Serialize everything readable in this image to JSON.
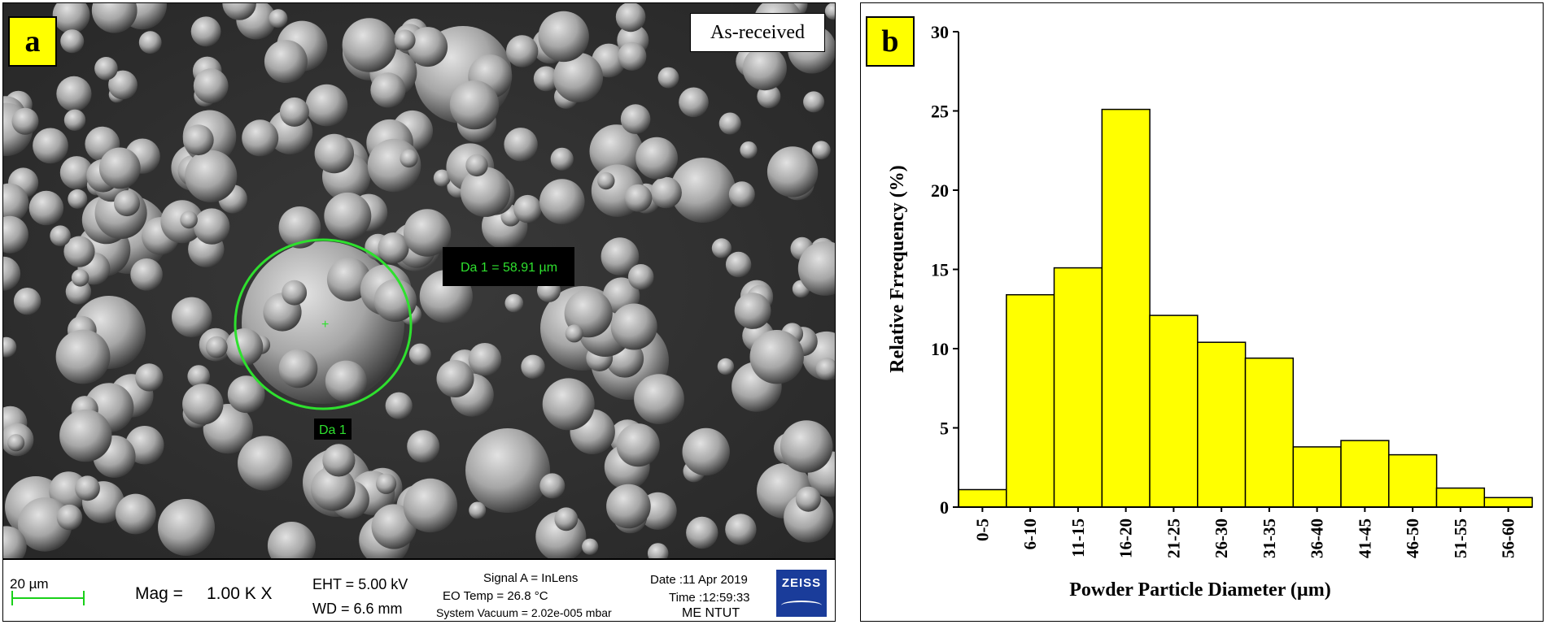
{
  "panel_a": {
    "tag": "a",
    "condition_label": "As-received",
    "measurement_label": "Da 1 = 58.91 µm",
    "measurement_marker": "Da 1",
    "footer": {
      "scale_bar": "20 µm",
      "mag_label": "Mag =",
      "mag_value": "1.00 K X",
      "eht": "EHT =  5.00 kV",
      "wd": "WD =  6.6 mm",
      "signal": "Signal A = InLens",
      "eo_temp": "EO Temp =  26.8 °C",
      "vacuum": "System Vacuum = 2.02e-005 mbar",
      "date": "Date :11 Apr 2019",
      "time": "Time :12:59:33",
      "lab": "ME NTUT",
      "logo": "ZEISS"
    }
  },
  "panel_b": {
    "tag": "b"
  },
  "chart_data": {
    "type": "bar",
    "title": "",
    "xlabel": "Powder Particle Diameter (µm)",
    "ylabel": "Relative Frrequency (%)",
    "categories": [
      "0-5",
      "6-10",
      "11-15",
      "16-20",
      "21-25",
      "26-30",
      "31-35",
      "36-40",
      "41-45",
      "46-50",
      "51-55",
      "56-60"
    ],
    "values": [
      1.1,
      13.4,
      15.1,
      25.1,
      12.1,
      10.4,
      9.4,
      3.8,
      4.2,
      3.3,
      1.2,
      0.6
    ],
    "ylim": [
      0,
      30
    ],
    "yticks": [
      0,
      5,
      10,
      15,
      20,
      25,
      30
    ],
    "bar_color": "#ffff00",
    "grid": false
  }
}
